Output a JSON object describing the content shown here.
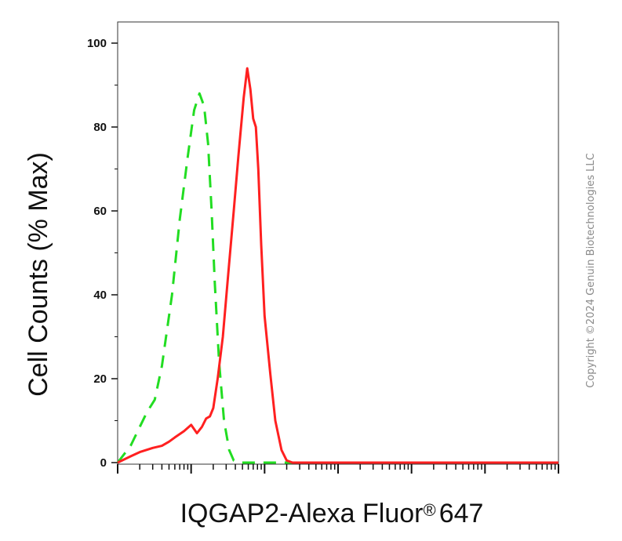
{
  "chart_data": {
    "type": "line",
    "xlabel": "IQGAP2-Alexa Fluor",
    "xlabel_mark": "®",
    "xlabel_suffix": "647",
    "ylabel": "Cell Counts (% Max)",
    "x_scale": "log",
    "ylim": [
      0,
      100
    ],
    "y_ticks": [
      "0",
      "20",
      "40",
      "60",
      "80",
      "100"
    ],
    "grid": false,
    "series": [
      {
        "color": "#22dd22",
        "line_style": "dashed",
        "x": [
          1.0,
          1.5,
          2.5,
          3.2,
          4.0,
          5.5,
          7.0,
          9.0,
          11.0,
          13.0,
          15.0,
          17.0,
          19.0,
          21.0,
          24.0,
          28.0,
          33.0,
          38.0,
          44.0,
          52.0,
          60.0,
          100.0,
          1000.0,
          100000.0,
          1000000.0
        ],
        "y": [
          0,
          4,
          12,
          15,
          23,
          40,
          58,
          73,
          84,
          88,
          85,
          76,
          60,
          43,
          24,
          10,
          3,
          0.5,
          0,
          0,
          0,
          0,
          0,
          0,
          0
        ]
      },
      {
        "color": "#ff2020",
        "line_style": "solid",
        "x": [
          1.0,
          1.5,
          2.0,
          3.0,
          4.0,
          5.0,
          6.0,
          8.0,
          10.0,
          12.0,
          14.0,
          16.0,
          18.0,
          20.0,
          23.0,
          27.0,
          32.0,
          38.0,
          44.0,
          52.0,
          58.0,
          64.0,
          70.0,
          76.0,
          82.0,
          90.0,
          100.0,
          120.0,
          140.0,
          170.0,
          200.0,
          240.0,
          300.0,
          1000.0,
          10000.0,
          100000.0,
          1000000.0
        ],
        "y": [
          0,
          1.5,
          2.5,
          3.5,
          4,
          5,
          6,
          7.5,
          9,
          7,
          8.5,
          10.5,
          11,
          13,
          20,
          30,
          45,
          60,
          73,
          87,
          94,
          89,
          82,
          80,
          70,
          52,
          35,
          21,
          10,
          3,
          0.5,
          0,
          0,
          0,
          0,
          0,
          0
        ]
      }
    ]
  },
  "copyright": "Copyright ©2024 Genuin Biotechnologies LLC"
}
